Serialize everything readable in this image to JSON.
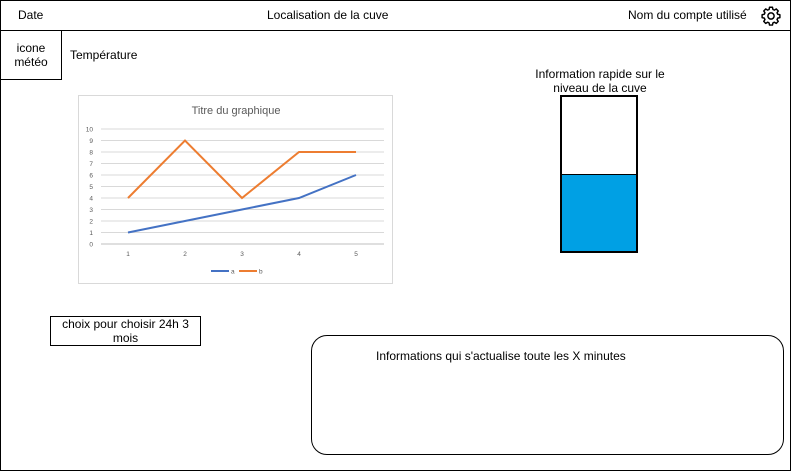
{
  "header": {
    "date": "Date",
    "location": "Localisation de la cuve",
    "account": "Nom du compte utilisé",
    "settings_icon": "gear-icon"
  },
  "weather": {
    "label": "icone météo"
  },
  "temperature": {
    "label": "Température"
  },
  "tank": {
    "label": "Information rapide sur le niveau de la cuve",
    "level": 0.5,
    "fill_color": "#00a0e4"
  },
  "period_selector": {
    "label": "choix pour choisir 24h 3 mois"
  },
  "info_panel": {
    "text": "Informations qui s'actualise toute les X minutes"
  },
  "chart_data": {
    "type": "line",
    "title": "Titre du graphique",
    "x": [
      1,
      2,
      3,
      4,
      5
    ],
    "ylim": [
      0,
      10
    ],
    "yticks": [
      0,
      1,
      2,
      3,
      4,
      5,
      6,
      7,
      8,
      9,
      10
    ],
    "grid": true,
    "legend": "bottom",
    "series": [
      {
        "name": "a",
        "values": [
          1,
          2,
          3,
          4,
          6
        ],
        "color": "#4472c4"
      },
      {
        "name": "b",
        "values": [
          4,
          9,
          4,
          8,
          8
        ],
        "color": "#ed7d31"
      }
    ]
  }
}
